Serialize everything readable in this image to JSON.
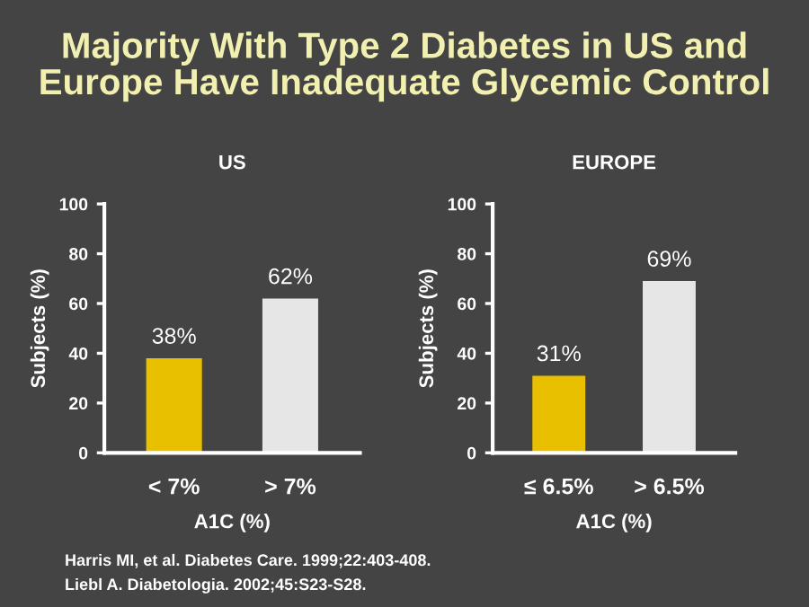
{
  "chart_data": [
    {
      "type": "bar",
      "title": "Majority With Type 2 Diabetes in US and Europe Have Inadequate Glycemic Control",
      "subtitle": "US",
      "categories": [
        "< 7%",
        "> 7%"
      ],
      "values": [
        38,
        62
      ],
      "value_labels": [
        "38%",
        "62%"
      ],
      "colors": [
        "#e8c000",
        "#e6e6e6"
      ],
      "xlabel": "A1C (%)",
      "ylabel": "Subjects (%)",
      "ylim": [
        0,
        100
      ],
      "yticks": [
        0,
        20,
        40,
        60,
        80,
        100
      ],
      "grid": false,
      "annotations": [
        "Harris MI, et al. Diabetes Care. 1999;22:403-408.",
        "Liebl A. Diabetologia. 2002;45:S23-S28."
      ]
    },
    {
      "type": "bar",
      "subtitle": "EUROPE",
      "categories": [
        "≤ 6.5%",
        "> 6.5%"
      ],
      "values": [
        31,
        69
      ],
      "value_labels": [
        "31%",
        "69%"
      ],
      "colors": [
        "#e8c000",
        "#e6e6e6"
      ],
      "xlabel": "A1C (%)",
      "ylabel": "Subjects (%)",
      "ylim": [
        0,
        100
      ],
      "yticks": [
        0,
        20,
        40,
        60,
        80,
        100
      ],
      "grid": false
    }
  ]
}
